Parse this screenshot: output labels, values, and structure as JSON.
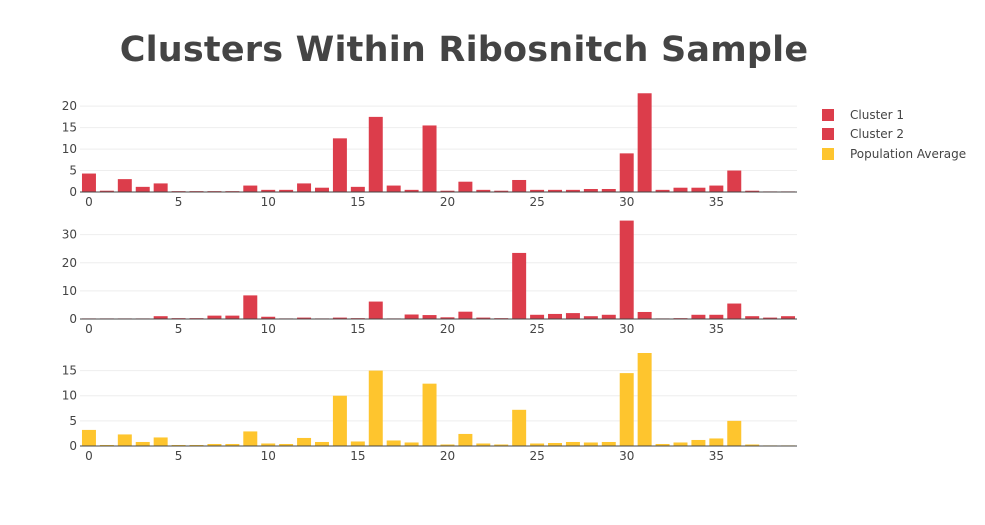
{
  "chart_data": {
    "type": "bar",
    "title": "Clusters Within Ribosnitch Sample",
    "legend": [
      {
        "name": "Cluster 1",
        "color": "#dc3d4b"
      },
      {
        "name": "Cluster 2",
        "color": "#dc3d4b"
      },
      {
        "name": "Population Average",
        "color": "#fec52e"
      }
    ],
    "legend_position": "top-right",
    "grid": true,
    "x": [
      0,
      1,
      2,
      3,
      4,
      5,
      6,
      7,
      8,
      9,
      10,
      11,
      12,
      13,
      14,
      15,
      16,
      17,
      18,
      19,
      20,
      21,
      22,
      23,
      24,
      25,
      26,
      27,
      28,
      29,
      30,
      31,
      32,
      33,
      34,
      35,
      36,
      37,
      38,
      39
    ],
    "xticks": [
      0,
      5,
      10,
      15,
      20,
      25,
      30,
      35
    ],
    "xlim": [
      -0.5,
      39.5
    ],
    "subplots": [
      {
        "name": "Cluster 1",
        "color": "#dc3d4b",
        "ylim": [
          0,
          20.5
        ],
        "yticks": [
          0,
          5,
          10,
          15,
          20
        ],
        "values": [
          4.3,
          0.3,
          3.0,
          1.2,
          2.0,
          0.2,
          0.2,
          0.2,
          0.2,
          1.5,
          0.5,
          0.5,
          2.0,
          1.0,
          12.5,
          1.2,
          17.5,
          1.5,
          0.5,
          15.5,
          0.3,
          2.4,
          0.5,
          0.3,
          2.8,
          0.5,
          0.5,
          0.5,
          0.7,
          0.7,
          9.0,
          23.0,
          0.5,
          1.0,
          1.0,
          1.5,
          5.0,
          0.3,
          0.1,
          0.1
        ]
      },
      {
        "name": "Cluster 2",
        "color": "#dc3d4b",
        "ylim": [
          0,
          34.5
        ],
        "yticks": [
          0,
          10,
          20,
          30
        ],
        "values": [
          0.1,
          0.1,
          0.1,
          0.1,
          1.0,
          0.3,
          0.3,
          1.2,
          1.2,
          8.4,
          0.8,
          0.2,
          0.5,
          0.1,
          0.5,
          0.3,
          6.2,
          0.2,
          1.6,
          1.4,
          0.6,
          2.6,
          0.5,
          0.3,
          23.5,
          1.5,
          1.8,
          2.1,
          1.0,
          1.5,
          35.0,
          2.5,
          0.2,
          0.3,
          1.5,
          1.5,
          5.5,
          1.0,
          0.5,
          1.0
        ]
      },
      {
        "name": "Population Average",
        "color": "#fec52e",
        "ylim": [
          0,
          18.5
        ],
        "yticks": [
          0,
          5,
          10,
          15
        ],
        "values": [
          3.2,
          0.2,
          2.3,
          0.8,
          1.7,
          0.2,
          0.2,
          0.4,
          0.4,
          2.9,
          0.5,
          0.4,
          1.6,
          0.8,
          10.0,
          0.9,
          15.0,
          1.1,
          0.7,
          12.4,
          0.3,
          2.4,
          0.5,
          0.3,
          7.2,
          0.5,
          0.6,
          0.8,
          0.7,
          0.8,
          14.5,
          18.5,
          0.4,
          0.7,
          1.2,
          1.5,
          5.0,
          0.3,
          0.1,
          0.1
        ]
      }
    ]
  }
}
